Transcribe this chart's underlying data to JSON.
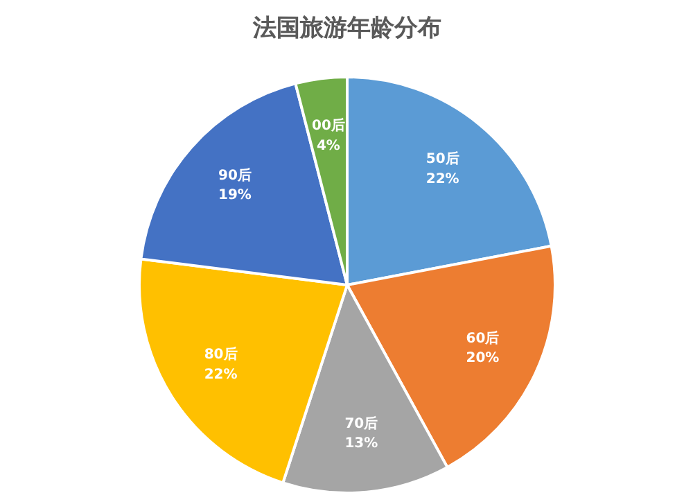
{
  "chart_data": {
    "type": "pie",
    "title": "法国旅游年龄分布",
    "categories": [
      "50后",
      "60后",
      "70后",
      "80后",
      "90后",
      "00后"
    ],
    "values": [
      22,
      20,
      13,
      22,
      19,
      4
    ],
    "colors": [
      "#5b9bd5",
      "#ed7d31",
      "#a5a5a5",
      "#ffc000",
      "#4472c4",
      "#70ad47"
    ],
    "value_labels": [
      "22%",
      "20%",
      "13%",
      "22%",
      "19%",
      "4%"
    ]
  }
}
